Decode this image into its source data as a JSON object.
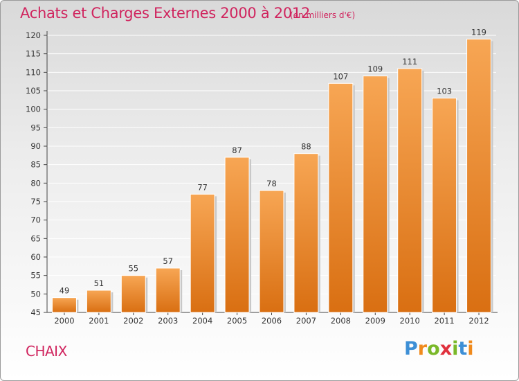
{
  "header": {
    "title": "Achats et Charges Externes 2000 à 2012",
    "unit": "(en milliers d'€)"
  },
  "footer": {
    "commune": "CHAIX",
    "logo_text": "Proxiti"
  },
  "colors": {
    "title": "#d0245e",
    "bar_top": "#f7a654",
    "bar_bottom": "#d96f12",
    "grid": "#ffffff"
  },
  "chart_data": {
    "type": "bar",
    "title": "Achats et Charges Externes 2000 à 2012",
    "subtitle": "(en milliers d'€)",
    "xlabel": "",
    "ylabel": "",
    "categories": [
      "2000",
      "2001",
      "2002",
      "2003",
      "2004",
      "2005",
      "2006",
      "2007",
      "2008",
      "2009",
      "2010",
      "2011",
      "2012"
    ],
    "values": [
      49,
      51,
      55,
      57,
      77,
      87,
      78,
      88,
      107,
      109,
      111,
      103,
      119
    ],
    "ylim": [
      45,
      120
    ],
    "yticks": [
      45,
      50,
      55,
      60,
      65,
      70,
      75,
      80,
      85,
      90,
      95,
      100,
      105,
      110,
      115,
      120
    ],
    "grid": true,
    "data_labels": true
  }
}
